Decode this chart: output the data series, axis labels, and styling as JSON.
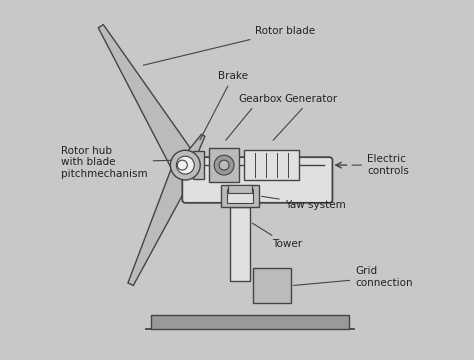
{
  "bg_color": "#c8c8c8",
  "line_color": "#444444",
  "fill_light": "#e0e0e0",
  "fill_mid": "#bbbbbb",
  "fill_dark": "#999999",
  "fill_white": "#f0f0f0",
  "labels": {
    "rotor_blade": "Rotor blade",
    "brake": "Brake",
    "gearbox": "Gearbox",
    "generator": "Generator",
    "electric_controls": "Electric\ncontrols",
    "rotor_hub": "Rotor hub\nwith blade\npitchmechanism",
    "yaw_system": "Yaw system",
    "tower": "Tower",
    "grid_connection": "Grid\nconnection"
  },
  "font_size": 7.5,
  "lw": 1.0
}
